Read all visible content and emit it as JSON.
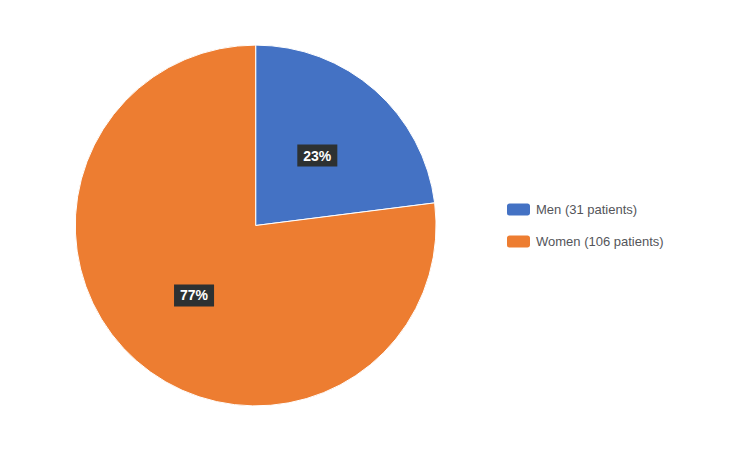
{
  "chart_data": {
    "type": "pie",
    "categories": [
      "Men (31 patients)",
      "Women (106 patients)"
    ],
    "values": [
      23,
      77
    ],
    "value_labels": [
      "23%",
      "77%"
    ],
    "colors": [
      "#4472C4",
      "#ED7D31"
    ],
    "legend": "right",
    "data_labels": true
  }
}
